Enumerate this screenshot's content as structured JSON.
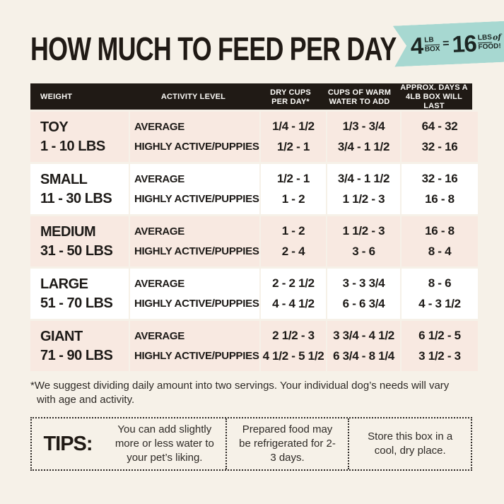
{
  "colors": {
    "page_bg": "#f6f1e8",
    "badge_bg": "#a7d8d1",
    "table_header_bg": "#201a15",
    "row_tint_bg": "#f8e9e1",
    "row_white_bg": "#ffffff"
  },
  "header": {
    "title": "HOW MUCH TO FEED PER DAY",
    "badge": {
      "qty": "4",
      "qty_unit_top": "LB",
      "qty_unit_bottom": "BOX",
      "equals": "=",
      "result": "16",
      "result_unit_top": "LBS",
      "result_of": "of",
      "result_unit_bottom": "FOOD!"
    }
  },
  "table": {
    "columns": [
      {
        "line1": "WEIGHT",
        "line2": ""
      },
      {
        "line1": "ACTIVITY LEVEL",
        "line2": ""
      },
      {
        "line1": "DRY CUPS",
        "line2": "PER DAY*"
      },
      {
        "line1": "CUPS OF WARM",
        "line2": "WATER TO ADD"
      },
      {
        "line1": "APPROX. DAYS A",
        "line2": "4LB BOX WILL LAST"
      }
    ],
    "rows": [
      {
        "size": "TOY",
        "range": "1 - 10 LBS",
        "act1": "AVERAGE",
        "act2": "HIGHLY ACTIVE/PUPPIES",
        "dry1": "1/4 - 1/2",
        "dry2": "1/2 - 1",
        "water1": "1/3 - 3/4",
        "water2": "3/4 - 1 1/2",
        "days1": "64 - 32",
        "days2": "32 - 16"
      },
      {
        "size": "SMALL",
        "range": "11 - 30 LBS",
        "act1": "AVERAGE",
        "act2": "HIGHLY ACTIVE/PUPPIES",
        "dry1": "1/2 - 1",
        "dry2": "1 - 2",
        "water1": "3/4 - 1 1/2",
        "water2": "1 1/2 - 3",
        "days1": "32 - 16",
        "days2": "16 - 8"
      },
      {
        "size": "MEDIUM",
        "range": "31 - 50 LBS",
        "act1": "AVERAGE",
        "act2": "HIGHLY ACTIVE/PUPPIES",
        "dry1": "1 - 2",
        "dry2": "2 - 4",
        "water1": "1 1/2 - 3",
        "water2": "3 - 6",
        "days1": "16 - 8",
        "days2": "8 - 4"
      },
      {
        "size": "LARGE",
        "range": "51 - 70 LBS",
        "act1": "AVERAGE",
        "act2": "HIGHLY ACTIVE/PUPPIES",
        "dry1": "2 - 2 1/2",
        "dry2": "4 - 4 1/2",
        "water1": "3 - 3 3/4",
        "water2": "6 - 6 3/4",
        "days1": "8 - 6",
        "days2": "4 - 3 1/2"
      },
      {
        "size": "GIANT",
        "range": "71 - 90 LBS",
        "act1": "AVERAGE",
        "act2": "HIGHLY ACTIVE/PUPPIES",
        "dry1": "2 1/2 - 3",
        "dry2": "4 1/2 - 5 1/2",
        "water1": "3 3/4 - 4 1/2",
        "water2": "6 3/4 - 8 1/4",
        "days1": "6 1/2 - 5",
        "days2": "3 1/2 - 3"
      }
    ]
  },
  "footnote": "*We suggest dividing daily amount into two servings. Your individual dog’s needs will vary with age and activity.",
  "tips": {
    "label": "TIPS:",
    "items": [
      "You can add slightly more or less water to your pet’s liking.",
      "Prepared food may be refrigerated for 2-3 days.",
      "Store this box in a cool, dry place."
    ]
  }
}
